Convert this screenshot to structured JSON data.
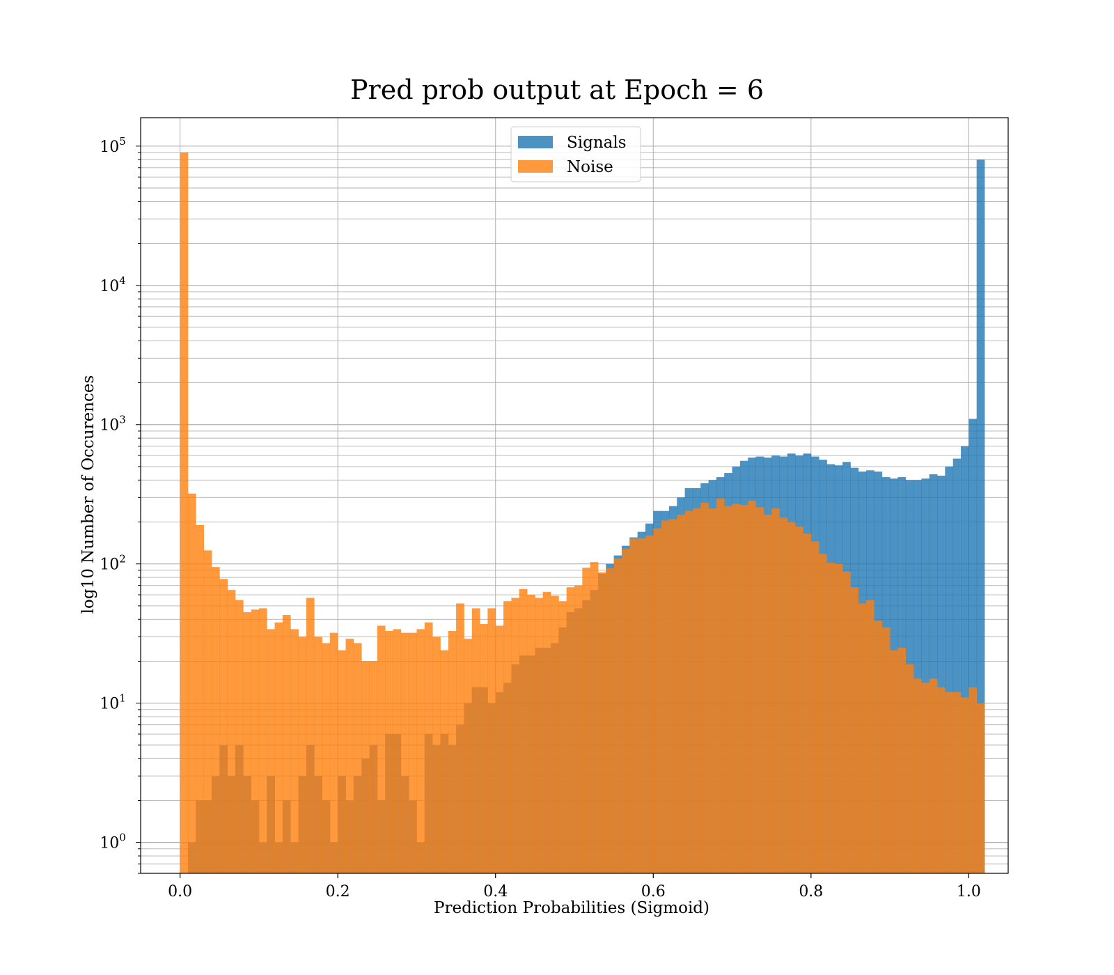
{
  "chart_data": {
    "type": "bar",
    "title": "Pred prob output at Epoch = 6",
    "xlabel": "Prediction Probabilities (Sigmoid)",
    "ylabel": "log10 Number of Occurences",
    "xscale": "linear",
    "yscale": "log",
    "xlim": [
      -0.05,
      1.05
    ],
    "ylim": [
      0.6,
      160000
    ],
    "x_ticks": [
      0.0,
      0.2,
      0.4,
      0.6,
      0.8,
      1.0
    ],
    "x_tick_labels": [
      "0.0",
      "0.2",
      "0.4",
      "0.6",
      "0.8",
      "1.0"
    ],
    "y_ticks": [
      {
        "value": 1,
        "base": "10",
        "exp": "0"
      },
      {
        "value": 10,
        "base": "10",
        "exp": "1"
      },
      {
        "value": 100,
        "base": "10",
        "exp": "2"
      },
      {
        "value": 1000,
        "base": "10",
        "exp": "3"
      },
      {
        "value": 10000,
        "base": "10",
        "exp": "4"
      },
      {
        "value": 100000,
        "base": "10",
        "exp": "5"
      }
    ],
    "grid": true,
    "legend_position": "top-center",
    "bin_start": 0.0,
    "bin_width": 0.01,
    "series": [
      {
        "name": "Signals",
        "color": "#1f77b4",
        "opacity": 0.8,
        "values": [
          0,
          1,
          2,
          2,
          3,
          5,
          3,
          5,
          3,
          2,
          1,
          3,
          1,
          2,
          1,
          3,
          5,
          3,
          2,
          1,
          3,
          2,
          3,
          4,
          5,
          2,
          6,
          6,
          3,
          2,
          1,
          6,
          5,
          6,
          5,
          7,
          10,
          13,
          13,
          10,
          12,
          14,
          19,
          22,
          22,
          25,
          25,
          27,
          35,
          45,
          48,
          55,
          65,
          85,
          100,
          115,
          135,
          155,
          170,
          195,
          240,
          240,
          260,
          300,
          350,
          350,
          380,
          400,
          420,
          450,
          500,
          550,
          580,
          590,
          580,
          600,
          590,
          620,
          600,
          620,
          590,
          560,
          520,
          510,
          540,
          490,
          460,
          470,
          460,
          420,
          410,
          420,
          400,
          400,
          410,
          440,
          430,
          500,
          570,
          700,
          1100,
          80000
        ]
      },
      {
        "name": "Noise",
        "color": "#ff7f0e",
        "opacity": 0.8,
        "values": [
          90000,
          320,
          190,
          125,
          95,
          78,
          65,
          55,
          45,
          47,
          48,
          34,
          38,
          43,
          34,
          30,
          57,
          30,
          27,
          32,
          24,
          29,
          27,
          20,
          20,
          36,
          33,
          34,
          32,
          32,
          34,
          38,
          30,
          24,
          33,
          52,
          29,
          48,
          37,
          48,
          36,
          54,
          57,
          66,
          60,
          57,
          63,
          59,
          54,
          68,
          70,
          94,
          103,
          87,
          93,
          109,
          128,
          152,
          153,
          160,
          180,
          205,
          210,
          225,
          240,
          250,
          275,
          250,
          295,
          260,
          270,
          265,
          285,
          255,
          225,
          250,
          215,
          200,
          185,
          165,
          145,
          118,
          102,
          100,
          88,
          68,
          52,
          55,
          39,
          35,
          24,
          25,
          19,
          15,
          14,
          15,
          13,
          12,
          12,
          11,
          13,
          10,
          null
        ]
      }
    ]
  }
}
